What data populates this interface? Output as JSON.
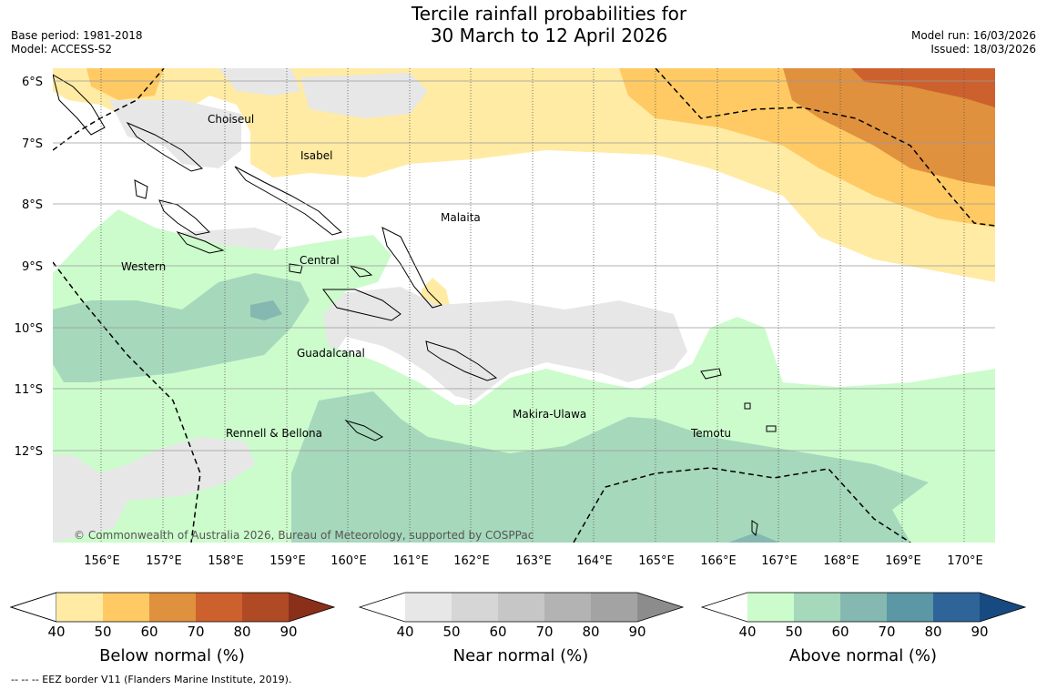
{
  "header": {
    "title_line1": "Tercile rainfall probabilities for",
    "title_line2": "30 March to 12 April 2026",
    "base_period": "Base period: 1981-2018",
    "model": "Model: ACCESS-S2",
    "model_run": "Model run: 16/03/2026",
    "issued": "Issued: 18/03/2026"
  },
  "map": {
    "lat_labels": [
      "6°S",
      "7°S",
      "8°S",
      "9°S",
      "10°S",
      "11°S",
      "12°S"
    ],
    "lon_labels": [
      "156°E",
      "157°E",
      "158°E",
      "159°E",
      "160°E",
      "161°E",
      "162°E",
      "163°E",
      "164°E",
      "165°E",
      "166°E",
      "167°E",
      "168°E",
      "169°E",
      "170°E"
    ],
    "provinces": [
      "Choiseul",
      "Isabel",
      "Malaita",
      "Western",
      "Central",
      "Guadalcanal",
      "Makira-Ulawa",
      "Rennell & Bellona",
      "Temotu"
    ],
    "copyright": "© Commonwealth of Australia 2026, Bureau of Meteorology, supported by COSPPac",
    "colors": {
      "below": [
        "#ffeba4",
        "#ffca64",
        "#e0913e",
        "#cc612e",
        "#b04a24",
        "#8a2f1a"
      ],
      "near": [
        "#e7e7e7",
        "#d6d6d6",
        "#c6c6c6",
        "#b3b3b3",
        "#a3a3a3",
        "#8c8c8c"
      ],
      "above": [
        "#ccfccc",
        "#a6d8bc",
        "#84b8b0",
        "#5b97a4",
        "#2f6498",
        "#174a80"
      ]
    }
  },
  "legends": [
    {
      "title": "Below normal (%)",
      "ticks": [
        "40",
        "50",
        "60",
        "70",
        "80",
        "90"
      ]
    },
    {
      "title": "Near normal (%)",
      "ticks": [
        "40",
        "50",
        "60",
        "70",
        "80",
        "90"
      ]
    },
    {
      "title": "Above normal (%)",
      "ticks": [
        "40",
        "50",
        "60",
        "70",
        "80",
        "90"
      ]
    }
  ],
  "footnote": "--  --  -- EEZ border V11 (Flanders Marine Institute, 2019)."
}
